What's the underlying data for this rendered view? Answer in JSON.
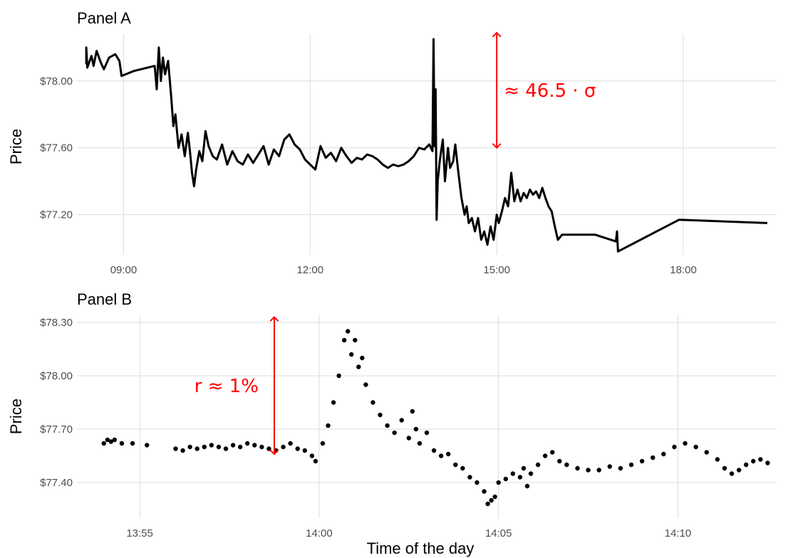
{
  "chart_data": [
    {
      "type": "line",
      "title": "Panel A",
      "xlabel": "",
      "ylabel": "Price",
      "x_unit": "time of day (hours)",
      "xlim": [
        "08:15",
        "19:30"
      ],
      "ylim": [
        76.96,
        78.28
      ],
      "x_ticks": [
        "09:00",
        "12:00",
        "15:00",
        "18:00"
      ],
      "y_ticks": [
        "$77.20",
        "$77.60",
        "$78.00"
      ],
      "grid": true,
      "color": "#000000",
      "annotation": {
        "text": "≈ 46.5 · σ",
        "color": "#ff0000",
        "x": "15:00",
        "y_from": 77.6,
        "y_to": 78.32
      },
      "series": [
        {
          "values": [
            [
              "08:24",
              78.1
            ],
            [
              "08:24",
              78.2
            ],
            [
              "08:25",
              78.08
            ],
            [
              "08:29",
              78.15
            ],
            [
              "08:31",
              78.09
            ],
            [
              "08:34",
              78.18
            ],
            [
              "08:38",
              78.11
            ],
            [
              "08:41",
              78.07
            ],
            [
              "08:46",
              78.14
            ],
            [
              "08:52",
              78.16
            ],
            [
              "08:56",
              78.12
            ],
            [
              "08:58",
              78.03
            ],
            [
              "09:02",
              78.04
            ],
            [
              "09:10",
              78.06
            ],
            [
              "09:30",
              78.09
            ],
            [
              "09:32",
              77.95
            ],
            [
              "09:34",
              78.2
            ],
            [
              "09:36",
              78.0
            ],
            [
              "09:38",
              78.14
            ],
            [
              "09:40",
              78.04
            ],
            [
              "09:43",
              78.12
            ],
            [
              "09:46",
              77.9
            ],
            [
              "09:48",
              77.73
            ],
            [
              "09:50",
              77.8
            ],
            [
              "09:53",
              77.6
            ],
            [
              "09:56",
              77.68
            ],
            [
              "09:59",
              77.55
            ],
            [
              "10:02",
              77.69
            ],
            [
              "10:04",
              77.58
            ],
            [
              "10:06",
              77.45
            ],
            [
              "10:08",
              77.37
            ],
            [
              "10:10",
              77.47
            ],
            [
              "10:13",
              77.58
            ],
            [
              "10:16",
              77.52
            ],
            [
              "10:19",
              77.7
            ],
            [
              "10:22",
              77.61
            ],
            [
              "10:26",
              77.55
            ],
            [
              "10:30",
              77.53
            ],
            [
              "10:35",
              77.62
            ],
            [
              "10:40",
              77.5
            ],
            [
              "10:45",
              77.58
            ],
            [
              "10:50",
              77.52
            ],
            [
              "10:55",
              77.5
            ],
            [
              "11:00",
              77.56
            ],
            [
              "11:05",
              77.51
            ],
            [
              "11:10",
              77.56
            ],
            [
              "11:15",
              77.61
            ],
            [
              "11:20",
              77.5
            ],
            [
              "11:25",
              77.59
            ],
            [
              "11:30",
              77.55
            ],
            [
              "11:35",
              77.65
            ],
            [
              "11:40",
              77.68
            ],
            [
              "11:45",
              77.62
            ],
            [
              "11:50",
              77.59
            ],
            [
              "11:55",
              77.53
            ],
            [
              "12:00",
              77.5
            ],
            [
              "12:05",
              77.47
            ],
            [
              "12:10",
              77.61
            ],
            [
              "12:15",
              77.54
            ],
            [
              "12:20",
              77.57
            ],
            [
              "12:25",
              77.52
            ],
            [
              "12:30",
              77.6
            ],
            [
              "12:35",
              77.55
            ],
            [
              "12:40",
              77.51
            ],
            [
              "12:45",
              77.54
            ],
            [
              "12:50",
              77.53
            ],
            [
              "12:55",
              77.56
            ],
            [
              "13:00",
              77.55
            ],
            [
              "13:05",
              77.53
            ],
            [
              "13:10",
              77.5
            ],
            [
              "13:15",
              77.48
            ],
            [
              "13:20",
              77.5
            ],
            [
              "13:25",
              77.49
            ],
            [
              "13:30",
              77.5
            ],
            [
              "13:35",
              77.52
            ],
            [
              "13:40",
              77.55
            ],
            [
              "13:45",
              77.6
            ],
            [
              "13:50",
              77.59
            ],
            [
              "13:55",
              77.62
            ],
            [
              "13:58",
              77.58
            ],
            [
              "13:59",
              78.25
            ],
            [
              "14:00",
              77.61
            ],
            [
              "14:01",
              77.95
            ],
            [
              "14:02",
              77.17
            ],
            [
              "14:03",
              77.4
            ],
            [
              "14:05",
              77.52
            ],
            [
              "14:08",
              77.65
            ],
            [
              "14:10",
              77.4
            ],
            [
              "14:13",
              77.6
            ],
            [
              "14:15",
              77.48
            ],
            [
              "14:18",
              77.52
            ],
            [
              "14:20",
              77.62
            ],
            [
              "14:23",
              77.45
            ],
            [
              "14:26",
              77.3
            ],
            [
              "14:29",
              77.2
            ],
            [
              "14:31",
              77.25
            ],
            [
              "14:33",
              77.15
            ],
            [
              "14:36",
              77.18
            ],
            [
              "14:39",
              77.1
            ],
            [
              "14:42",
              77.18
            ],
            [
              "14:45",
              77.05
            ],
            [
              "14:48",
              77.1
            ],
            [
              "14:51",
              77.02
            ],
            [
              "14:54",
              77.13
            ],
            [
              "14:57",
              77.05
            ],
            [
              "15:00",
              77.2
            ],
            [
              "15:02",
              77.15
            ],
            [
              "15:05",
              77.22
            ],
            [
              "15:08",
              77.3
            ],
            [
              "15:11",
              77.25
            ],
            [
              "15:14",
              77.45
            ],
            [
              "15:17",
              77.28
            ],
            [
              "15:20",
              77.35
            ],
            [
              "15:23",
              77.28
            ],
            [
              "15:26",
              77.33
            ],
            [
              "15:29",
              77.3
            ],
            [
              "15:32",
              77.35
            ],
            [
              "15:35",
              77.32
            ],
            [
              "15:38",
              77.34
            ],
            [
              "15:41",
              77.3
            ],
            [
              "15:44",
              77.36
            ],
            [
              "15:47",
              77.3
            ],
            [
              "15:50",
              77.25
            ],
            [
              "15:53",
              77.22
            ],
            [
              "15:56",
              77.13
            ],
            [
              "15:59",
              77.05
            ],
            [
              "16:03",
              77.08
            ],
            [
              "16:35",
              77.08
            ],
            [
              "16:55",
              77.04
            ],
            [
              "16:56",
              77.1
            ],
            [
              "16:57",
              76.98
            ],
            [
              "17:56",
              77.17
            ],
            [
              "19:21",
              77.15
            ]
          ]
        }
      ]
    },
    {
      "type": "scatter",
      "title": "Panel B",
      "xlabel": "Time of the day",
      "ylabel": "Price",
      "x_unit": "time of day (hours)",
      "xlim": [
        "13:53:15",
        "14:12:45"
      ],
      "ylim": [
        77.2,
        78.34
      ],
      "x_ticks": [
        "13:55",
        "14:00",
        "14:05",
        "14:10"
      ],
      "y_ticks": [
        "$77.40",
        "$77.70",
        "$78.00",
        "$78.30"
      ],
      "grid": true,
      "color": "#000000",
      "annotation": {
        "text": "r ≈ 1%",
        "color": "#ff0000",
        "x": "13:58:45",
        "y_from": 77.56,
        "y_to": 78.33
      },
      "series": [
        {
          "values": [
            [
              "13:54:00",
              77.62
            ],
            [
              "13:54:06",
              77.64
            ],
            [
              "13:54:12",
              77.63
            ],
            [
              "13:54:18",
              77.64
            ],
            [
              "13:54:30",
              77.62
            ],
            [
              "13:54:48",
              77.62
            ],
            [
              "13:55:12",
              77.61
            ],
            [
              "13:56:00",
              77.59
            ],
            [
              "13:56:12",
              77.58
            ],
            [
              "13:56:24",
              77.6
            ],
            [
              "13:56:36",
              77.59
            ],
            [
              "13:56:48",
              77.6
            ],
            [
              "13:57:00",
              77.61
            ],
            [
              "13:57:12",
              77.6
            ],
            [
              "13:57:24",
              77.59
            ],
            [
              "13:57:36",
              77.61
            ],
            [
              "13:57:48",
              77.6
            ],
            [
              "13:58:00",
              77.62
            ],
            [
              "13:58:12",
              77.61
            ],
            [
              "13:58:24",
              77.6
            ],
            [
              "13:58:36",
              77.59
            ],
            [
              "13:58:48",
              77.58
            ],
            [
              "13:59:00",
              77.6
            ],
            [
              "13:59:12",
              77.62
            ],
            [
              "13:59:24",
              77.59
            ],
            [
              "13:59:36",
              77.58
            ],
            [
              "13:59:48",
              77.55
            ],
            [
              "13:59:54",
              77.52
            ],
            [
              "14:00:06",
              77.62
            ],
            [
              "14:00:15",
              77.72
            ],
            [
              "14:00:24",
              77.85
            ],
            [
              "14:00:33",
              78.0
            ],
            [
              "14:00:42",
              78.2
            ],
            [
              "14:00:48",
              78.25
            ],
            [
              "14:00:54",
              78.12
            ],
            [
              "14:01:00",
              78.2
            ],
            [
              "14:01:06",
              78.05
            ],
            [
              "14:01:12",
              78.1
            ],
            [
              "14:01:18",
              77.95
            ],
            [
              "14:01:30",
              77.85
            ],
            [
              "14:01:42",
              77.78
            ],
            [
              "14:01:54",
              77.72
            ],
            [
              "14:02:06",
              77.68
            ],
            [
              "14:02:18",
              77.75
            ],
            [
              "14:02:30",
              77.65
            ],
            [
              "14:02:36",
              77.8
            ],
            [
              "14:02:42",
              77.7
            ],
            [
              "14:02:48",
              77.62
            ],
            [
              "14:03:00",
              77.68
            ],
            [
              "14:03:12",
              77.58
            ],
            [
              "14:03:24",
              77.55
            ],
            [
              "14:03:36",
              77.56
            ],
            [
              "14:03:48",
              77.5
            ],
            [
              "14:04:00",
              77.48
            ],
            [
              "14:04:12",
              77.43
            ],
            [
              "14:04:24",
              77.4
            ],
            [
              "14:04:36",
              77.35
            ],
            [
              "14:04:42",
              77.28
            ],
            [
              "14:04:48",
              77.3
            ],
            [
              "14:04:54",
              77.32
            ],
            [
              "14:05:00",
              77.4
            ],
            [
              "14:05:12",
              77.42
            ],
            [
              "14:05:24",
              77.45
            ],
            [
              "14:05:36",
              77.43
            ],
            [
              "14:05:42",
              77.48
            ],
            [
              "14:05:48",
              77.38
            ],
            [
              "14:05:54",
              77.45
            ],
            [
              "14:06:06",
              77.5
            ],
            [
              "14:06:18",
              77.55
            ],
            [
              "14:06:30",
              77.57
            ],
            [
              "14:06:42",
              77.52
            ],
            [
              "14:06:54",
              77.5
            ],
            [
              "14:07:12",
              77.48
            ],
            [
              "14:07:30",
              77.47
            ],
            [
              "14:07:48",
              77.47
            ],
            [
              "14:08:06",
              77.49
            ],
            [
              "14:08:24",
              77.48
            ],
            [
              "14:08:42",
              77.5
            ],
            [
              "14:09:00",
              77.52
            ],
            [
              "14:09:18",
              77.54
            ],
            [
              "14:09:36",
              77.56
            ],
            [
              "14:09:54",
              77.6
            ],
            [
              "14:10:12",
              77.62
            ],
            [
              "14:10:30",
              77.6
            ],
            [
              "14:10:48",
              77.57
            ],
            [
              "14:11:06",
              77.53
            ],
            [
              "14:11:18",
              77.48
            ],
            [
              "14:11:30",
              77.45
            ],
            [
              "14:11:42",
              77.47
            ],
            [
              "14:11:54",
              77.5
            ],
            [
              "14:12:06",
              77.52
            ],
            [
              "14:12:18",
              77.53
            ],
            [
              "14:12:30",
              77.51
            ]
          ]
        }
      ]
    }
  ]
}
